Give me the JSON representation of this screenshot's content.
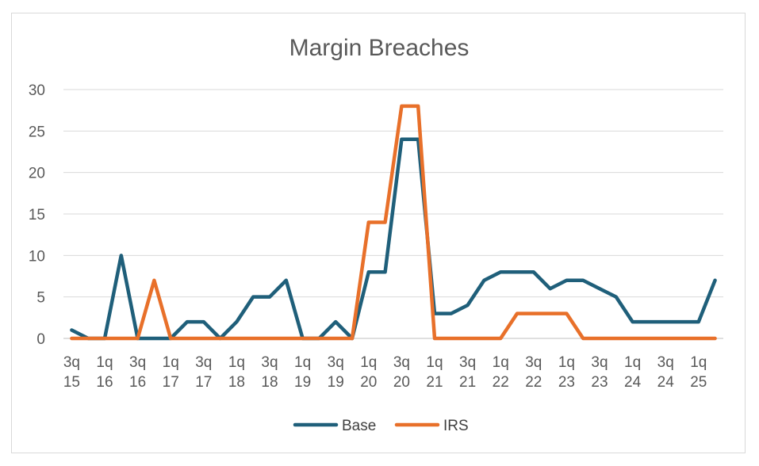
{
  "chart_data": {
    "type": "line",
    "title": "Margin Breaches",
    "xlabel": "",
    "ylabel": "",
    "ylim": [
      0,
      30
    ],
    "yticks": [
      0,
      5,
      10,
      15,
      20,
      25,
      30
    ],
    "grid": true,
    "legend_position": "bottom",
    "x_tick_labels": [
      [
        "3q",
        "15"
      ],
      [
        "1q",
        "16"
      ],
      [
        "3q",
        "16"
      ],
      [
        "1q",
        "17"
      ],
      [
        "3q",
        "17"
      ],
      [
        "1q",
        "18"
      ],
      [
        "3q",
        "18"
      ],
      [
        "1q",
        "19"
      ],
      [
        "3q",
        "19"
      ],
      [
        "1q",
        "20"
      ],
      [
        "3q",
        "20"
      ],
      [
        "1q",
        "21"
      ],
      [
        "3q",
        "21"
      ],
      [
        "1q",
        "22"
      ],
      [
        "3q",
        "22"
      ],
      [
        "1q",
        "23"
      ],
      [
        "3q",
        "23"
      ],
      [
        "1q",
        "24"
      ],
      [
        "3q",
        "24"
      ],
      [
        "1q",
        "25"
      ]
    ],
    "series": [
      {
        "name": "Base",
        "color": "#1f5f7a",
        "values": [
          1,
          0,
          0,
          10,
          0,
          0,
          0,
          2,
          2,
          0,
          2,
          5,
          5,
          7,
          0,
          0,
          2,
          0,
          8,
          8,
          24,
          24,
          3,
          3,
          4,
          7,
          8,
          8,
          8,
          6,
          7,
          7,
          6,
          5,
          2,
          2,
          2,
          2,
          2,
          7
        ]
      },
      {
        "name": "IRS",
        "color": "#e8702a",
        "values": [
          0,
          0,
          0,
          0,
          0,
          7,
          0,
          0,
          0,
          0,
          0,
          0,
          0,
          0,
          0,
          0,
          0,
          0,
          14,
          14,
          28,
          28,
          0,
          0,
          0,
          0,
          0,
          3,
          3,
          3,
          3,
          0,
          0,
          0,
          0,
          0,
          0,
          0,
          0,
          0
        ]
      }
    ]
  }
}
